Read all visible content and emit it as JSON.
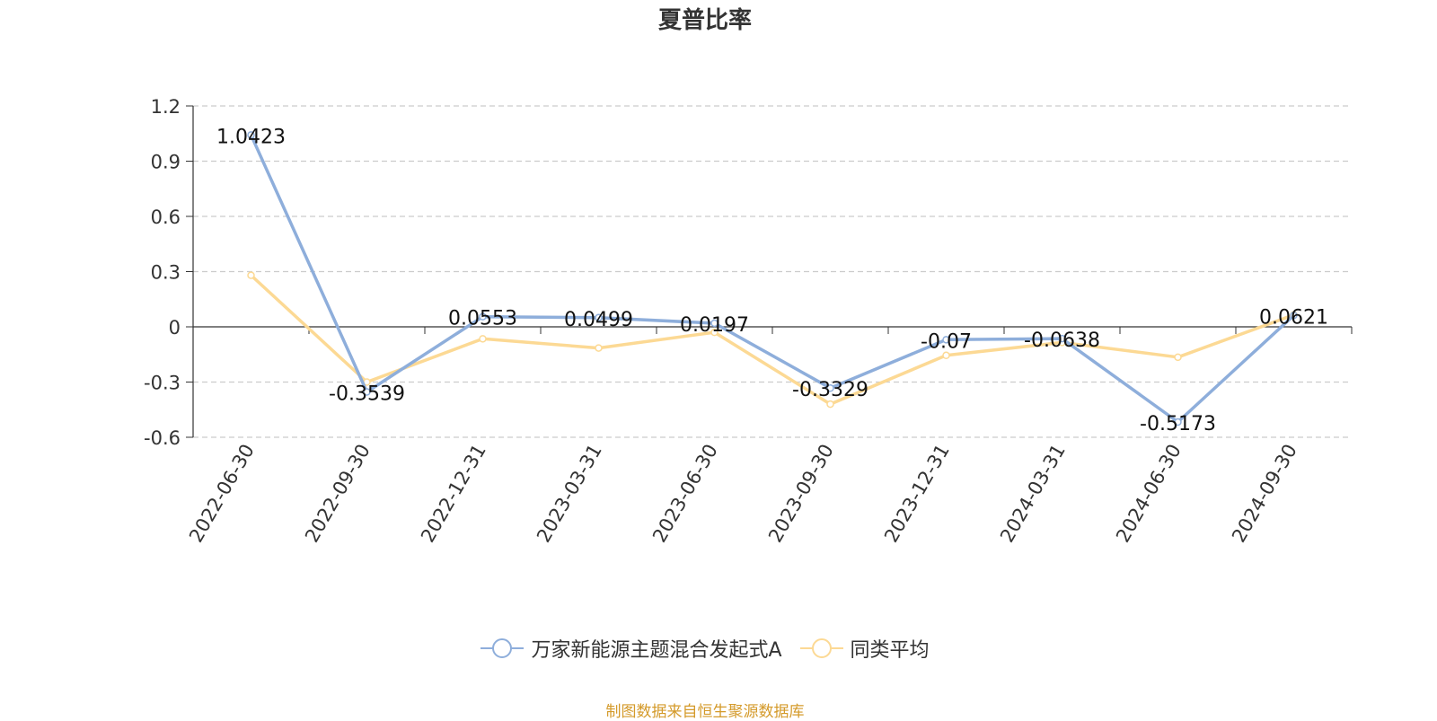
{
  "chart_data": {
    "type": "line",
    "title": "夏普比率",
    "categories": [
      "2022-06-30",
      "2022-09-30",
      "2022-12-31",
      "2023-03-31",
      "2023-06-30",
      "2023-09-30",
      "2023-12-31",
      "2024-03-31",
      "2024-06-30",
      "2024-09-30"
    ],
    "yticks": [
      "1.2",
      "0.9",
      "0.6",
      "0.3",
      "0",
      "-0.3",
      "-0.6"
    ],
    "ylim": [
      -0.6,
      1.2
    ],
    "grid": true,
    "legend_position": "bottom",
    "series": [
      {
        "name": "万家新能源主题混合发起式A",
        "color": "#8eaedb",
        "values": [
          1.0423,
          -0.3539,
          0.0553,
          0.0499,
          0.0197,
          -0.3329,
          -0.07,
          -0.0638,
          -0.5173,
          0.0621
        ],
        "labels": [
          "1.0423",
          "-0.3539",
          "0.0553",
          "0.0499",
          "0.0197",
          "-0.3329",
          "-0.07",
          "-0.0638",
          "-0.5173",
          "0.0621"
        ]
      },
      {
        "name": "同类平均",
        "color": "#fcd994",
        "values": [
          0.28,
          -0.3,
          -0.065,
          -0.115,
          -0.03,
          -0.42,
          -0.155,
          -0.085,
          -0.165,
          0.065
        ]
      }
    ]
  },
  "footer": "制图数据来自恒生聚源数据库"
}
